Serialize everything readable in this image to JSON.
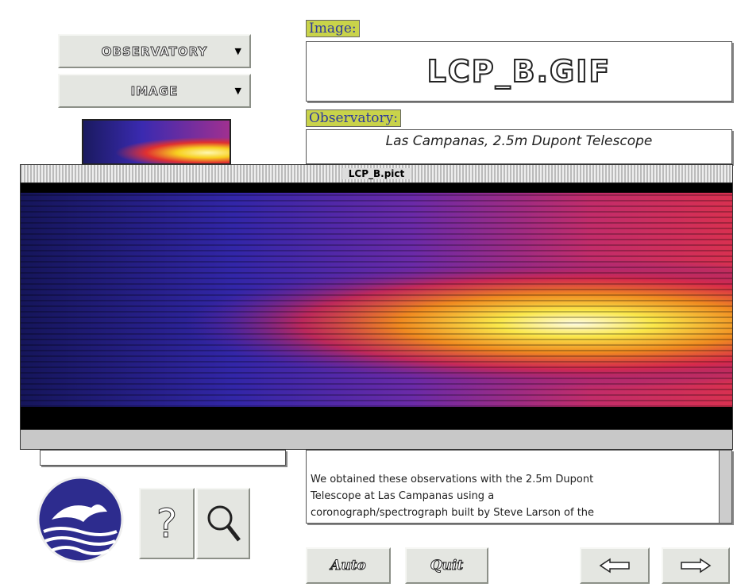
{
  "menus": {
    "observatory": "OBSERVATORY",
    "image": "IMAGE"
  },
  "image_field": {
    "label": "Image:",
    "value": "LCP_B.GIF"
  },
  "observatory_field": {
    "label": "Observatory:",
    "value": "Las Campanas, 2.5m Dupont Telescope"
  },
  "window": {
    "title": "LCP_B.pict"
  },
  "description": [
    "We obtained these observations with the 2.5m Dupont",
    "Telescope at Las Campanas using a",
    "coronograph/spectrograph built by Steve Larson of the"
  ],
  "buttons": {
    "help": "?",
    "auto": "Auto",
    "quit": "Quit"
  }
}
